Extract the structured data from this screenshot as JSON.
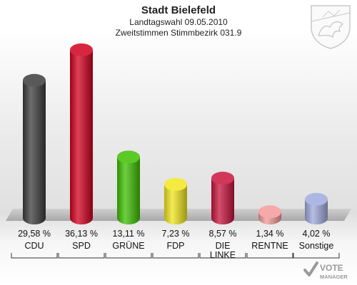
{
  "header": {
    "title": "Stadt Bielefeld",
    "subtitle1": "Landtagswahl 09.05.2010",
    "subtitle2": "Zweitstimmen Stimmbezirk 031.9"
  },
  "brand": {
    "line1": "VOTE",
    "line2": "MANAGER"
  },
  "chart_data": {
    "type": "bar",
    "categories": [
      "CDU",
      "SPD",
      "GRÜNE",
      "FDP",
      "DIE LINKE",
      "RENTNE",
      "Sonstige"
    ],
    "category_lines": [
      [
        "CDU"
      ],
      [
        "SPD"
      ],
      [
        "GRÜNE"
      ],
      [
        "FDP"
      ],
      [
        "DIE",
        "LINKE"
      ],
      [
        "RENTNE"
      ],
      [
        "Sonstige"
      ]
    ],
    "values": [
      29.58,
      36.13,
      13.11,
      7.23,
      8.57,
      1.34,
      4.02
    ],
    "value_labels": [
      "29,58 %",
      "36,13 %",
      "13,11 %",
      "7,23 %",
      "8,57 %",
      "1,34 %",
      "4,02 %"
    ],
    "colors": [
      "#3c3c3c",
      "#d2001e",
      "#3ec000",
      "#f2e61e",
      "#c8143c",
      "#f49a9a",
      "#a0aade"
    ],
    "title": "Stadt Bielefeld",
    "ylim": [
      0,
      36.13
    ],
    "grid": false,
    "legend": "none"
  }
}
